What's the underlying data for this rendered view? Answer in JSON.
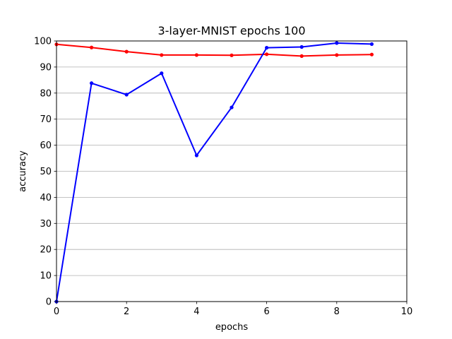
{
  "chart_data": {
    "type": "line",
    "title": "3-layer-MNIST epochs 100",
    "xlabel": "epochs",
    "ylabel": "accuracy",
    "xlim": [
      0,
      10
    ],
    "ylim": [
      0,
      100
    ],
    "xticks": [
      0,
      2,
      4,
      6,
      8,
      10
    ],
    "yticks": [
      0,
      10,
      20,
      30,
      40,
      50,
      60,
      70,
      80,
      90,
      100
    ],
    "grid": "horizontal",
    "x": [
      0,
      1,
      2,
      3,
      4,
      5,
      6,
      7,
      8,
      9
    ],
    "series": [
      {
        "color": "#ff0000",
        "marker": "dot",
        "values": [
          98.7,
          97.5,
          95.9,
          94.6,
          94.6,
          94.5,
          94.9,
          94.2,
          94.6,
          94.8
        ]
      },
      {
        "color": "#0000ff",
        "marker": "dot",
        "values": [
          0,
          83.8,
          79.4,
          87.6,
          56.1,
          74.5,
          97.4,
          97.7,
          99.2,
          98.8
        ]
      }
    ]
  }
}
